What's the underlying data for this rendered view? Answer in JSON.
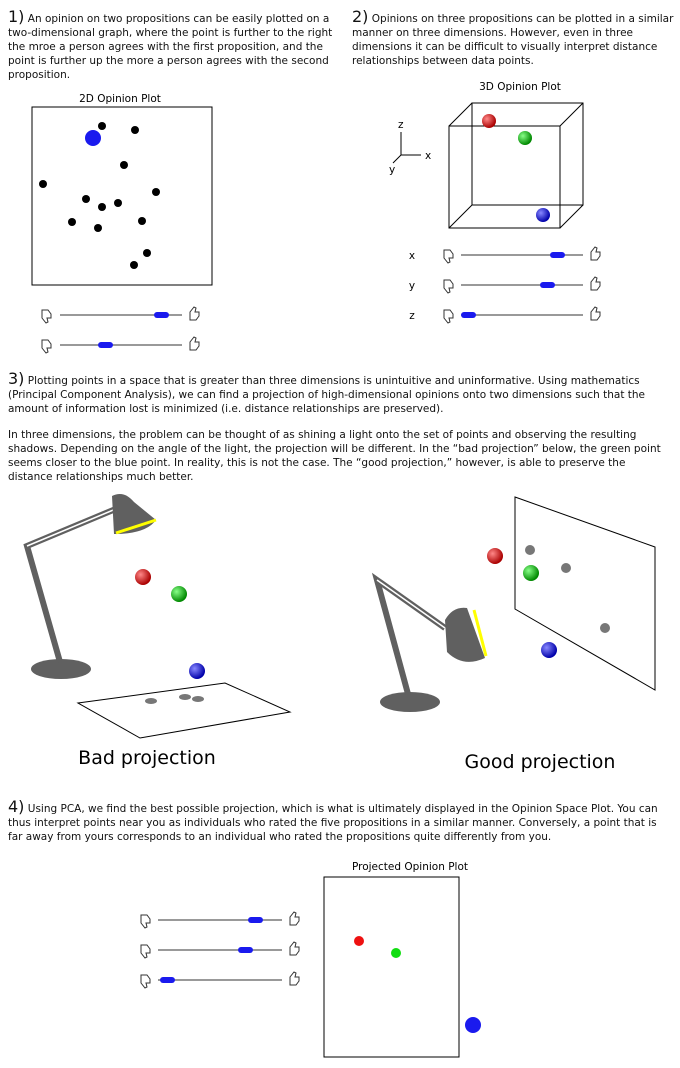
{
  "sections": [
    {
      "number": "1)",
      "text": "An opinion on two propositions can be easily plotted on a two-dimensional graph, where the point is further to the right the mroe a person agrees with the first proposition, and the point is further up the more a person agrees with the second proposition."
    },
    {
      "number": "2)",
      "text": "Opinions on three propositions can be plotted in a similar manner on three dimensions. However, even in three dimensions it can be difficult to visually interpret distance relationships between data points."
    },
    {
      "number": "3)",
      "text": "Plotting points in a space that is greater  than  three dimensions is unintuitive and uninformative. Using mathematics (Principal Component Analysis),  we can find a projection of high-dimensional opinions onto two dimensions such that the amount of information lost is minimized (i.e. distance relationships are preserved).",
      "text2": "In three dimensions, the problem can be thought of as shining a light onto the set of points and observing the resulting shadows. Depending on the angle of the light, the projection will be different. In the “bad projection” below, the green point seems closer to the blue point. In reality, this is not the case. The “good projection,” however, is able to preserve the distance relationships much better."
    },
    {
      "number": "4)",
      "text": "Using PCA, we find the best possible projection, which is what is ultimately displayed in the Opinion Space Plot. You can thus interpret points near you as individuals who rated the five propositions in a similar manner. Conversely, a point that is far away from yours corresponds to an individual who rated the propositions quite differently from you."
    }
  ],
  "plots": {
    "plot2d": {
      "title": "2D Opinion Plot"
    },
    "plot3d": {
      "title": "3D Opinion Plot",
      "axes": [
        "z",
        "x",
        "y"
      ],
      "slider_labels": [
        "x",
        "y",
        "z"
      ]
    },
    "projected": {
      "title": "Projected Opinion Plot"
    }
  },
  "captions": [
    "Bad projection",
    "Good projection"
  ]
}
